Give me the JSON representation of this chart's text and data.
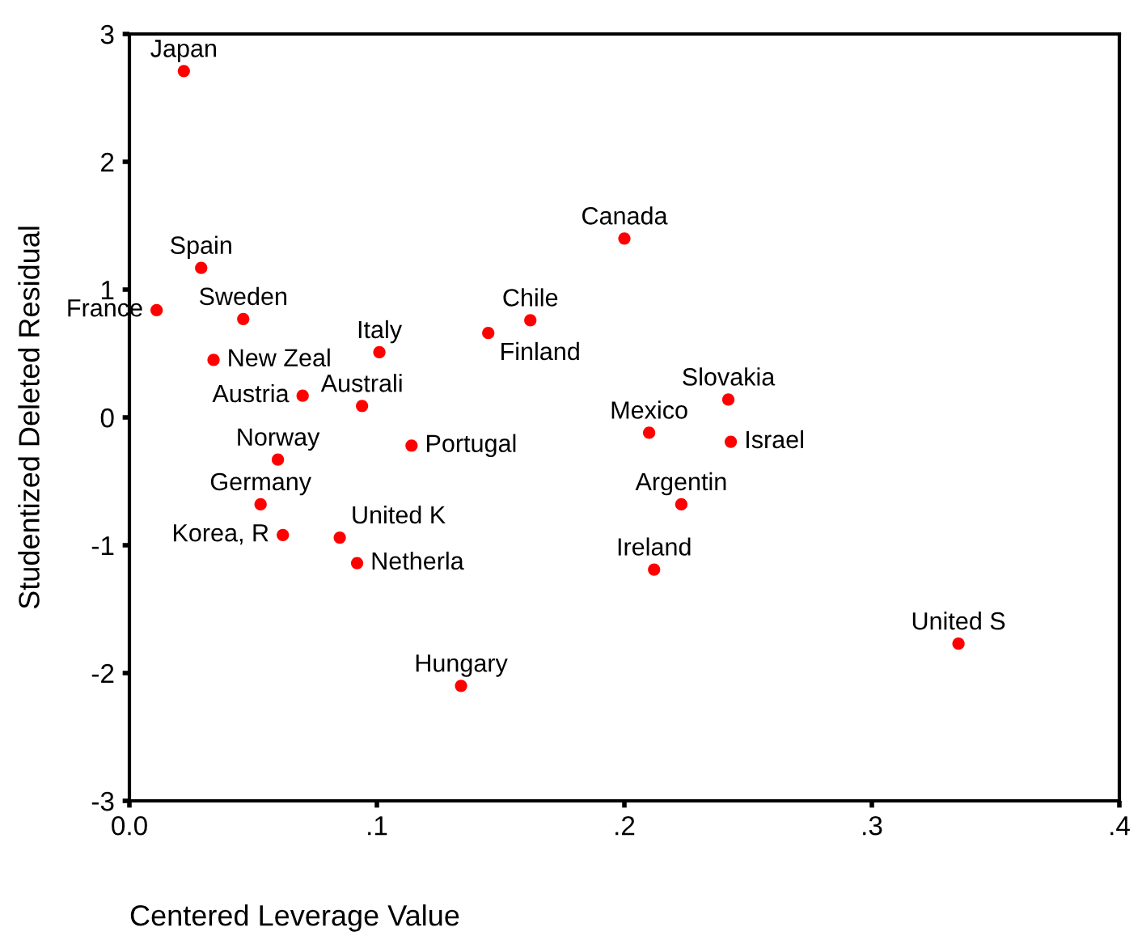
{
  "chart_data": {
    "type": "scatter",
    "xlabel": "Centered Leverage Value",
    "ylabel": "Studentized Deleted Residual",
    "xlim": [
      0,
      0.4
    ],
    "xticks": [
      {
        "value": 0,
        "label": "0.0"
      },
      {
        "value": 0.1,
        "label": ".1"
      },
      {
        "value": 0.2,
        "label": ".2"
      },
      {
        "value": 0.3,
        "label": ".3"
      },
      {
        "value": 0.4,
        "label": ".4"
      }
    ],
    "ylim": [
      -3,
      3
    ],
    "yticks": [
      -3,
      -2,
      -1,
      0,
      1,
      2,
      3
    ],
    "grid": false,
    "legend": false,
    "marker": "circle",
    "series": [
      {
        "color": "#ff0000",
        "x": [
          0.022,
          0.029,
          0.011,
          0.046,
          0.034,
          0.07,
          0.094,
          0.101,
          0.114,
          0.06,
          0.053,
          0.062,
          0.085,
          0.092,
          0.134,
          0.2,
          0.145,
          0.162,
          0.21,
          0.242,
          0.243,
          0.223,
          0.212,
          0.335
        ],
        "values": [
          2.71,
          1.17,
          0.84,
          0.77,
          0.45,
          0.17,
          0.09,
          0.51,
          -0.22,
          -0.33,
          -0.68,
          -0.92,
          -0.94,
          -1.14,
          -2.1,
          1.4,
          0.66,
          0.76,
          -0.12,
          0.14,
          -0.19,
          -0.68,
          -1.19,
          -1.77
        ]
      }
    ],
    "annotations": [
      {
        "text": "Japan",
        "x": 0.022,
        "y": 2.71
      },
      {
        "text": "Spain",
        "x": 0.029,
        "y": 1.17
      },
      {
        "text": "France",
        "x": 0.011,
        "y": 0.84
      },
      {
        "text": "Sweden",
        "x": 0.046,
        "y": 0.77
      },
      {
        "text": "New Zeal",
        "x": 0.034,
        "y": 0.45
      },
      {
        "text": "Austria",
        "x": 0.07,
        "y": 0.17
      },
      {
        "text": "Australi",
        "x": 0.094,
        "y": 0.09
      },
      {
        "text": "Italy",
        "x": 0.101,
        "y": 0.51
      },
      {
        "text": "Portugal",
        "x": 0.114,
        "y": -0.22
      },
      {
        "text": "Norway",
        "x": 0.06,
        "y": -0.33
      },
      {
        "text": "Germany",
        "x": 0.053,
        "y": -0.68
      },
      {
        "text": "Korea, R",
        "x": 0.062,
        "y": -0.92
      },
      {
        "text": "United K",
        "x": 0.085,
        "y": -0.94
      },
      {
        "text": "Netherla",
        "x": 0.092,
        "y": -1.14
      },
      {
        "text": "Hungary",
        "x": 0.134,
        "y": -2.1
      },
      {
        "text": "Canada",
        "x": 0.2,
        "y": 1.4
      },
      {
        "text": "Finland",
        "x": 0.145,
        "y": 0.66
      },
      {
        "text": "Chile",
        "x": 0.162,
        "y": 0.76
      },
      {
        "text": "Mexico",
        "x": 0.21,
        "y": -0.12
      },
      {
        "text": "Slovakia",
        "x": 0.242,
        "y": 0.14
      },
      {
        "text": "Israel",
        "x": 0.243,
        "y": -0.19
      },
      {
        "text": "Argentin",
        "x": 0.223,
        "y": -0.68
      },
      {
        "text": "Ireland",
        "x": 0.212,
        "y": -1.19
      },
      {
        "text": "United S",
        "x": 0.335,
        "y": -1.77
      }
    ]
  }
}
